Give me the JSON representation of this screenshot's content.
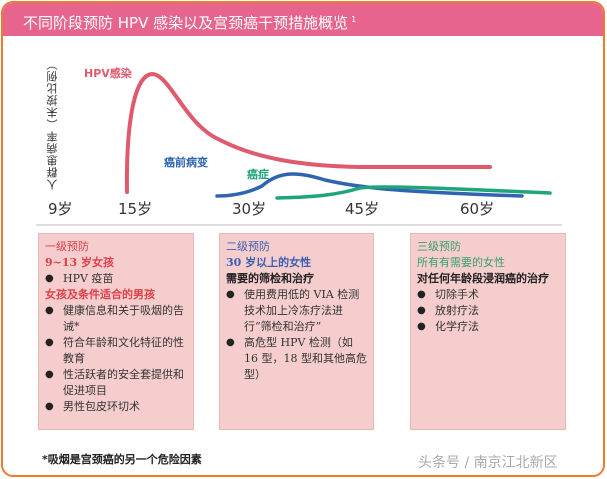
{
  "header": {
    "title": "不同阶段预防 HPV 感染以及宫颈癌干预措施概览",
    "footnote_ref": "1"
  },
  "chart": {
    "ylabel": "人群患病率（未按比例）",
    "ticks": [
      "9岁",
      "15岁",
      "30岁",
      "45岁",
      "60岁"
    ],
    "series": [
      {
        "name": "HPV感染",
        "color": "#e05a6e"
      },
      {
        "name": "癌前病变",
        "color": "#2f64b0"
      },
      {
        "name": "癌症",
        "color": "#1fa57a"
      }
    ]
  },
  "boxes": [
    {
      "title": "一级预防",
      "title_color": "#e0404a",
      "groups": [
        {
          "heading": "9~13 岁女孩",
          "heading_color": "#e0404a",
          "items": [
            "HPV 疫苗"
          ]
        },
        {
          "heading": "女孩及条件适合的男孩",
          "heading_color": "#e0404a",
          "items": [
            "健康信息和关于吸烟的告诫*",
            "符合年龄和文化特征的性教育",
            "性活跃者的安全套提供和促进项目",
            "男性包皮环切术"
          ]
        }
      ]
    },
    {
      "title": "二级预防",
      "title_color": "#3b5fb0",
      "subtitle": "30 岁以上的女性",
      "desc": "需要的筛检和治疗",
      "items": [
        "使用费用低的 VIA 检测技术加上冷冻疗法进行“筛检和治疗”",
        "高危型 HPV 检测（如 16 型，18 型和其他高危型）"
      ]
    },
    {
      "title": "三级预防",
      "title_color": "#3aa06a",
      "subtitle": "所有有需要的女性",
      "desc": "对任何年龄段浸润癌的治疗",
      "items": [
        "切除手术",
        "放射疗法",
        "化学疗法"
      ]
    }
  ],
  "footer": {
    "note": "*吸烟是宫颈癌的另一个危险因素",
    "watermark": "头条号 / 南京江北新区"
  }
}
